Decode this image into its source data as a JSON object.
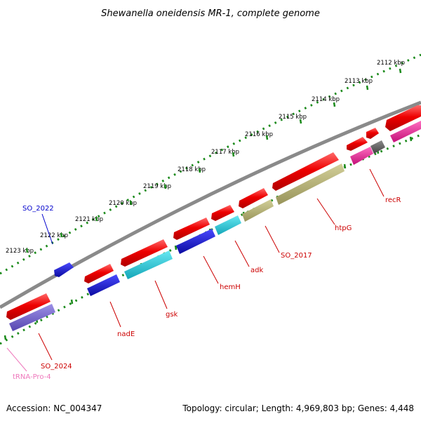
{
  "title": "Shewanella oneidensis MR-1, complete genome",
  "footer": {
    "accession": "Accession: NC_004347",
    "info": "Topology: circular; Length: 4,969,803 bp; Genes: 4,448"
  },
  "ticks": [
    "2112 kbp",
    "2113 kbp",
    "2114 kbp",
    "2115 kbp",
    "2116 kbp",
    "2117 kbp",
    "2118 kbp",
    "2119 kbp",
    "2120 kbp",
    "2121 kbp",
    "2122 kbp",
    "2123 kbp"
  ],
  "gene_labels": {
    "recR": "recR",
    "htpG": "htpG",
    "SO_2017": "SO_2017",
    "adk": "adk",
    "hemH": "hemH",
    "gsk": "gsk",
    "nadE": "nadE",
    "SO_2024": "SO_2024",
    "tRNA": "tRNA-Pro-4",
    "SO_2022": "SO_2022"
  },
  "colors": {
    "cds": "#ee0000",
    "backbone": "#808080",
    "tick_dots": "#1a8a1a",
    "label_red": "#cc0000",
    "label_blue": "#0000cc",
    "label_pink": "#ee77bb",
    "blue": "#1a1acc",
    "cyan": "#22ccdd",
    "olive": "#b3b070",
    "magenta": "#ee2299",
    "purple": "#7766cc",
    "gray": "#666666"
  }
}
